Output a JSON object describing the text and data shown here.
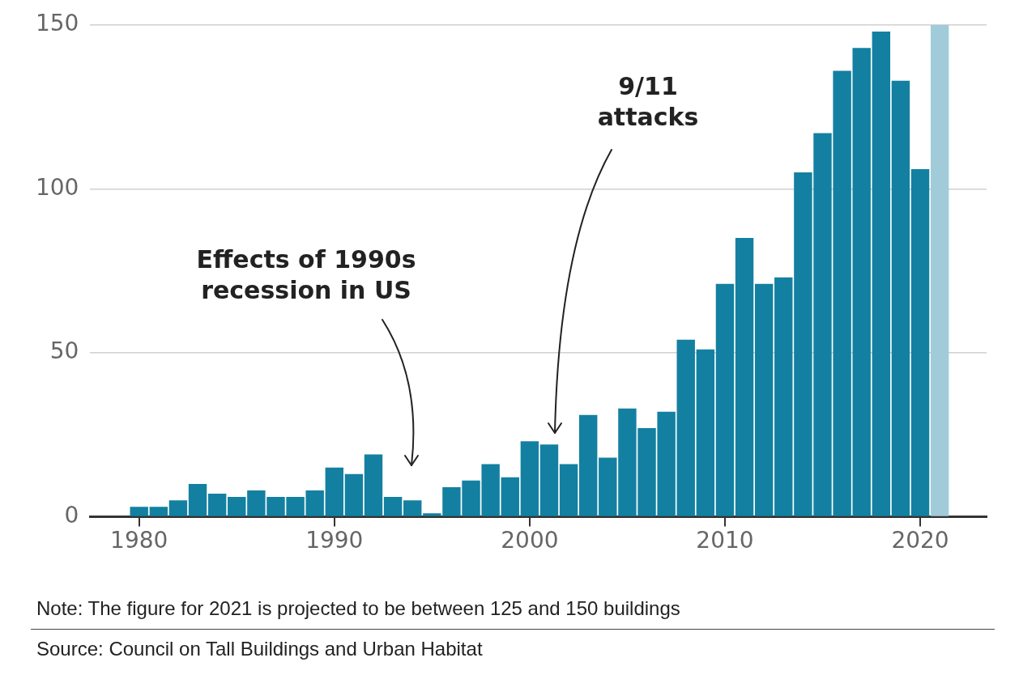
{
  "chart_data": {
    "type": "bar",
    "x": [
      1980,
      1981,
      1982,
      1983,
      1984,
      1985,
      1986,
      1987,
      1988,
      1989,
      1990,
      1991,
      1992,
      1993,
      1994,
      1995,
      1996,
      1997,
      1998,
      1999,
      2000,
      2001,
      2002,
      2003,
      2004,
      2005,
      2006,
      2007,
      2008,
      2009,
      2010,
      2011,
      2012,
      2013,
      2014,
      2015,
      2016,
      2017,
      2018,
      2019,
      2020,
      2021
    ],
    "values": [
      3,
      3,
      5,
      10,
      7,
      6,
      8,
      6,
      6,
      8,
      15,
      13,
      19,
      6,
      5,
      1,
      9,
      11,
      16,
      12,
      23,
      22,
      16,
      31,
      18,
      33,
      27,
      32,
      54,
      51,
      71,
      85,
      71,
      73,
      105,
      117,
      136,
      143,
      148,
      133,
      106,
      150
    ],
    "colors": [
      "#1380a1",
      "#1380a1",
      "#1380a1",
      "#1380a1",
      "#1380a1",
      "#1380a1",
      "#1380a1",
      "#1380a1",
      "#1380a1",
      "#1380a1",
      "#1380a1",
      "#1380a1",
      "#1380a1",
      "#1380a1",
      "#1380a1",
      "#1380a1",
      "#1380a1",
      "#1380a1",
      "#1380a1",
      "#1380a1",
      "#1380a1",
      "#1380a1",
      "#1380a1",
      "#1380a1",
      "#1380a1",
      "#1380a1",
      "#1380a1",
      "#1380a1",
      "#1380a1",
      "#1380a1",
      "#1380a1",
      "#1380a1",
      "#1380a1",
      "#1380a1",
      "#1380a1",
      "#1380a1",
      "#1380a1",
      "#1380a1",
      "#1380a1",
      "#1380a1",
      "#1380a1",
      "#a2cbd9"
    ],
    "xlim": [
      1977.5,
      2023.4
    ],
    "xticks": [
      1980,
      1990,
      2000,
      2010,
      2020
    ],
    "ylim": [
      0,
      150
    ],
    "yticks": [
      0,
      50,
      100,
      150
    ],
    "grid": "y",
    "legend": false,
    "annotations": [
      "Effects of 1990s\nrecession in US",
      "9/11\nattacks",
      "Note: The figure for 2021 is projected to be between 125 and 150 buildings",
      "Source: Council on Tall Buildings and Urban Habitat"
    ]
  }
}
